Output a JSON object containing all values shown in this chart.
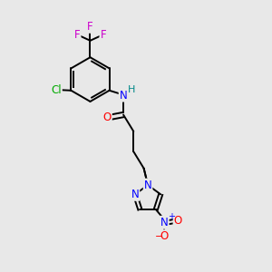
{
  "bg_color": "#e8e8e8",
  "bond_color": "#000000",
  "colors": {
    "N": "#0000ff",
    "O": "#ff0000",
    "F": "#cc00cc",
    "Cl": "#00aa00",
    "H": "#008888",
    "C": "#000000"
  },
  "font_size_atom": 8.5,
  "fig_w": 3.0,
  "fig_h": 3.0,
  "dpi": 100
}
